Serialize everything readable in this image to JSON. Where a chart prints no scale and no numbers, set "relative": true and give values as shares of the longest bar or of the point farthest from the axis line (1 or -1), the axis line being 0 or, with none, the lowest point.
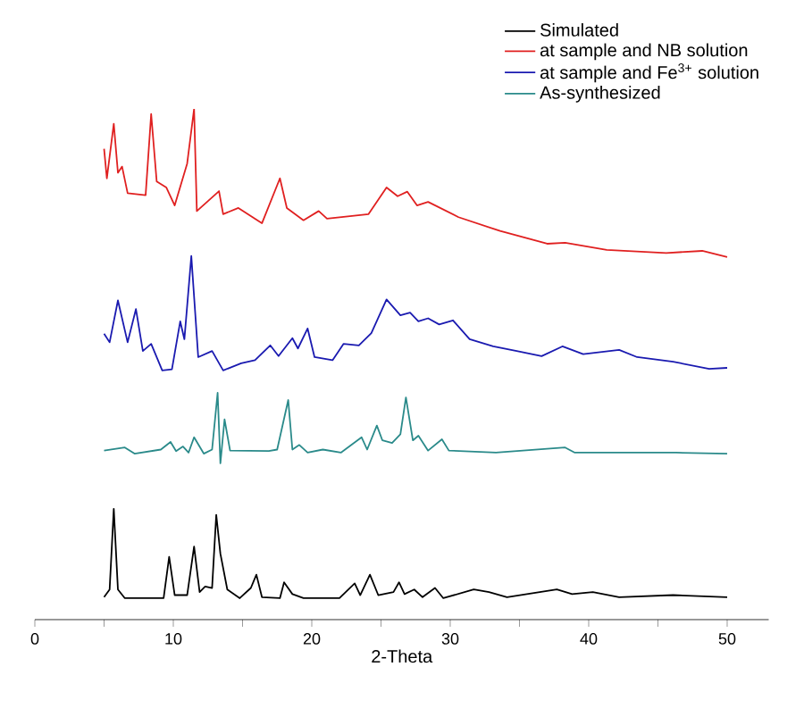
{
  "chart_data": {
    "type": "line",
    "relative": true,
    "xlabel": "2-Theta",
    "legend": "top right",
    "xlim": [
      0,
      53
    ],
    "xticks": [
      0,
      {
        "value": 5,
        "label": null
      },
      10,
      {
        "value": 15,
        "label": null
      },
      20,
      {
        "value": 25,
        "label": null
      },
      30,
      {
        "value": 35,
        "label": null
      },
      40,
      {
        "value": 45,
        "label": null
      },
      50
    ],
    "series": [
      {
        "name": "Simulated",
        "color": "#000000",
        "x": [
          5.0,
          5.4,
          5.7,
          6.0,
          6.5,
          9.3,
          9.7,
          10.1,
          11.0,
          11.5,
          11.9,
          12.3,
          12.8,
          13.1,
          13.4,
          13.9,
          14.8,
          15.6,
          16.0,
          16.4,
          17.7,
          18.0,
          18.6,
          19.4,
          22.0,
          23.1,
          23.5,
          24.2,
          24.8,
          25.9,
          26.3,
          26.7,
          27.4,
          28.0,
          28.9,
          29.5,
          31.7,
          32.8,
          34.1,
          37.7,
          38.8,
          40.3,
          42.2,
          46.1,
          50.0
        ],
        "values": [
          0.044,
          0.059,
          0.217,
          0.059,
          0.042,
          0.042,
          0.123,
          0.048,
          0.048,
          0.143,
          0.054,
          0.065,
          0.062,
          0.205,
          0.129,
          0.059,
          0.042,
          0.062,
          0.088,
          0.044,
          0.042,
          0.073,
          0.05,
          0.042,
          0.042,
          0.071,
          0.048,
          0.088,
          0.048,
          0.054,
          0.073,
          0.05,
          0.059,
          0.044,
          0.062,
          0.042,
          0.059,
          0.054,
          0.044,
          0.059,
          0.05,
          0.054,
          0.044,
          0.048,
          0.044
        ]
      },
      {
        "name": "at sample and NB solution",
        "color": "#e02020",
        "x": [
          5.0,
          5.2,
          5.7,
          6.0,
          6.3,
          6.7,
          8.0,
          8.4,
          8.8,
          9.5,
          10.1,
          11.0,
          11.5,
          11.7,
          13.3,
          13.6,
          14.7,
          16.4,
          17.7,
          18.2,
          19.4,
          20.5,
          21.1,
          24.1,
          25.4,
          26.2,
          26.9,
          27.6,
          28.4,
          30.6,
          33.6,
          37.0,
          38.3,
          41.3,
          45.6,
          48.2,
          50.0
        ],
        "values": [
          0.922,
          0.864,
          0.971,
          0.875,
          0.887,
          0.835,
          0.831,
          0.99,
          0.858,
          0.846,
          0.811,
          0.893,
          1.0,
          0.8,
          0.839,
          0.794,
          0.806,
          0.776,
          0.864,
          0.806,
          0.782,
          0.8,
          0.785,
          0.794,
          0.846,
          0.829,
          0.838,
          0.811,
          0.818,
          0.788,
          0.761,
          0.736,
          0.738,
          0.724,
          0.718,
          0.722,
          0.71
        ]
      },
      {
        "name": "at sample and Fe$^{3+}$ solution",
        "color": "#1a1ab0",
        "x": [
          5.0,
          5.4,
          6.0,
          6.7,
          7.3,
          7.8,
          8.4,
          9.2,
          9.9,
          10.5,
          10.8,
          11.3,
          11.8,
          12.8,
          13.6,
          14.9,
          15.9,
          17.0,
          17.6,
          18.6,
          19.0,
          19.7,
          20.2,
          21.5,
          22.3,
          23.4,
          24.3,
          25.4,
          26.4,
          27.1,
          27.7,
          28.4,
          29.2,
          30.2,
          31.4,
          33.1,
          34.8,
          36.6,
          38.1,
          39.6,
          42.2,
          43.5,
          46.1,
          48.7,
          50.0
        ],
        "values": [
          0.56,
          0.543,
          0.625,
          0.543,
          0.608,
          0.526,
          0.54,
          0.488,
          0.49,
          0.584,
          0.549,
          0.712,
          0.514,
          0.526,
          0.488,
          0.502,
          0.508,
          0.537,
          0.516,
          0.551,
          0.531,
          0.57,
          0.514,
          0.508,
          0.54,
          0.537,
          0.561,
          0.627,
          0.596,
          0.601,
          0.584,
          0.59,
          0.578,
          0.586,
          0.549,
          0.535,
          0.526,
          0.516,
          0.535,
          0.52,
          0.528,
          0.514,
          0.505,
          0.491,
          0.493
        ]
      },
      {
        "name": "As-synthesized",
        "color": "#2a8a8a",
        "x": [
          5.0,
          6.5,
          7.2,
          9.1,
          9.8,
          10.2,
          10.7,
          11.1,
          11.5,
          12.2,
          12.8,
          13.2,
          13.4,
          13.7,
          14.1,
          16.9,
          17.5,
          18.3,
          18.6,
          19.1,
          19.7,
          20.8,
          22.1,
          23.6,
          24.0,
          24.7,
          25.1,
          25.8,
          26.4,
          26.8,
          27.3,
          27.7,
          28.4,
          29.4,
          29.9,
          33.3,
          38.3,
          39.0,
          46.3,
          50.0
        ],
        "values": [
          0.331,
          0.337,
          0.325,
          0.333,
          0.348,
          0.33,
          0.339,
          0.327,
          0.357,
          0.325,
          0.333,
          0.444,
          0.306,
          0.392,
          0.331,
          0.33,
          0.333,
          0.43,
          0.333,
          0.342,
          0.327,
          0.333,
          0.327,
          0.357,
          0.333,
          0.38,
          0.351,
          0.346,
          0.363,
          0.435,
          0.351,
          0.36,
          0.331,
          0.353,
          0.331,
          0.327,
          0.337,
          0.327,
          0.327,
          0.325
        ]
      }
    ]
  }
}
